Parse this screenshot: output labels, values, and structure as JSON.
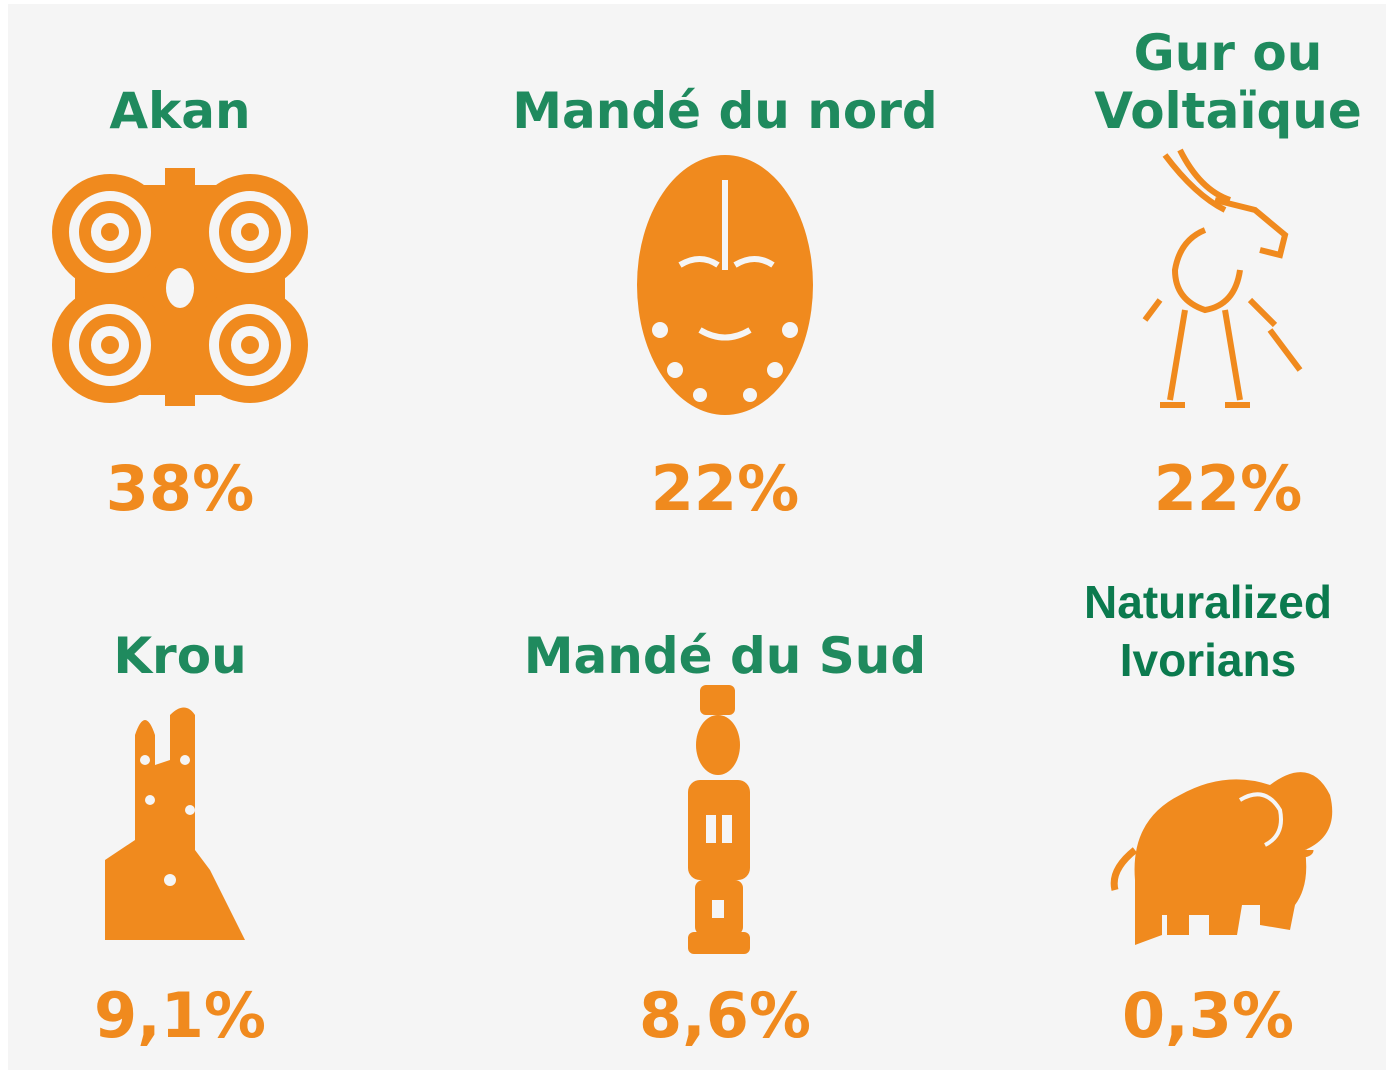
{
  "groups": [
    {
      "title_lines": [
        "Akan"
      ],
      "share": "38%"
    },
    {
      "title_lines": [
        "Mandé du nord"
      ],
      "share": "22%"
    },
    {
      "title_lines": [
        "Gur ou",
        "Voltaïque"
      ],
      "share": "22%"
    },
    {
      "title_lines": [
        "Krou"
      ],
      "share": "9,1%"
    },
    {
      "title_lines": [
        "Mandé du Sud"
      ],
      "share": "8,6%"
    },
    {
      "title_lines": [
        "Naturalized",
        "Ivorians"
      ],
      "share": "0,3%"
    }
  ]
}
